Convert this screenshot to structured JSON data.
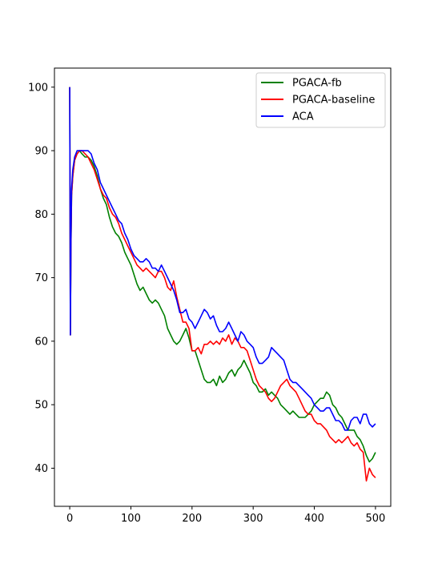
{
  "chart_data": {
    "type": "line",
    "title": "",
    "xlabel": "",
    "ylabel": "",
    "xlim": [
      -25,
      525
    ],
    "ylim": [
      34,
      103
    ],
    "xticks": [
      0,
      100,
      200,
      300,
      400,
      500
    ],
    "yticks": [
      40,
      50,
      60,
      70,
      80,
      90,
      100
    ],
    "legend_position": "top-right",
    "grid": false,
    "series": [
      {
        "name": "PGACA-fb",
        "color": "#008000",
        "x": [
          0,
          1,
          2,
          3,
          5,
          8,
          12,
          16,
          20,
          25,
          30,
          35,
          40,
          45,
          50,
          55,
          60,
          65,
          70,
          75,
          80,
          85,
          90,
          95,
          100,
          105,
          110,
          115,
          120,
          125,
          130,
          135,
          140,
          145,
          150,
          155,
          160,
          165,
          170,
          175,
          180,
          185,
          190,
          195,
          200,
          205,
          210,
          215,
          220,
          225,
          230,
          235,
          240,
          245,
          250,
          255,
          260,
          265,
          270,
          275,
          280,
          285,
          290,
          295,
          300,
          305,
          310,
          315,
          320,
          325,
          330,
          335,
          340,
          345,
          350,
          355,
          360,
          365,
          370,
          375,
          380,
          385,
          390,
          395,
          400,
          405,
          410,
          415,
          420,
          425,
          430,
          435,
          440,
          445,
          450,
          455,
          460,
          465,
          470,
          475,
          480,
          485,
          490,
          495,
          500
        ],
        "values": [
          100,
          61,
          75,
          83,
          86,
          88.5,
          89.5,
          90,
          89.5,
          89,
          89,
          88.5,
          87.5,
          86,
          84,
          82.5,
          81.5,
          79.5,
          78,
          77,
          76.5,
          75.5,
          74,
          73,
          72,
          70.5,
          69,
          68,
          68.5,
          67.5,
          66.5,
          66,
          66.5,
          66,
          65,
          64,
          62,
          61,
          60,
          59.5,
          60,
          61,
          62,
          60.5,
          58.5,
          58.5,
          57,
          55.5,
          54,
          53.5,
          53.5,
          54,
          53,
          54.5,
          53.5,
          54,
          55,
          55.5,
          54.5,
          55.5,
          56,
          57,
          56,
          55,
          53.5,
          53,
          52,
          52,
          52.5,
          51.5,
          52,
          51.5,
          51,
          50,
          49.5,
          49,
          48.5,
          49,
          48.5,
          48,
          48,
          48,
          48.5,
          49,
          50,
          50.5,
          51,
          51,
          52,
          51.5,
          50,
          49.5,
          48.5,
          48,
          47,
          46,
          46,
          46,
          45,
          44.5,
          43.5,
          42,
          41,
          41.5,
          42.5
        ]
      },
      {
        "name": "PGACA-baseline",
        "color": "#ff0000",
        "x": [
          0,
          1,
          2,
          3,
          5,
          8,
          12,
          16,
          20,
          25,
          30,
          35,
          40,
          45,
          50,
          55,
          60,
          65,
          70,
          75,
          80,
          85,
          90,
          95,
          100,
          105,
          110,
          115,
          120,
          125,
          130,
          135,
          140,
          145,
          150,
          155,
          160,
          165,
          170,
          175,
          180,
          185,
          190,
          195,
          200,
          205,
          210,
          215,
          220,
          225,
          230,
          235,
          240,
          245,
          250,
          255,
          260,
          265,
          270,
          275,
          280,
          285,
          290,
          295,
          300,
          305,
          310,
          315,
          320,
          325,
          330,
          335,
          340,
          345,
          350,
          355,
          360,
          365,
          370,
          375,
          380,
          385,
          390,
          395,
          400,
          405,
          410,
          415,
          420,
          425,
          430,
          435,
          440,
          445,
          450,
          455,
          460,
          465,
          470,
          475,
          480,
          485,
          490,
          495,
          500
        ],
        "values": [
          100,
          61,
          75,
          83,
          86,
          88.5,
          89.5,
          90,
          90,
          89.5,
          89,
          88,
          87,
          85.5,
          84,
          83,
          82.5,
          81,
          80,
          79.5,
          78.5,
          77,
          76,
          75,
          74,
          73,
          72,
          71.5,
          71,
          71.5,
          71,
          70.5,
          70,
          71,
          71,
          70,
          68.5,
          68,
          69.5,
          67,
          65,
          63,
          63,
          62,
          58.5,
          58.5,
          59,
          58,
          59.5,
          59.5,
          60,
          59.5,
          60,
          59.5,
          60.5,
          60,
          61,
          59.5,
          60.5,
          60,
          59,
          59,
          58.5,
          57,
          55.5,
          54,
          53,
          52.5,
          52,
          51,
          50.5,
          51,
          52,
          53,
          53.5,
          54,
          53,
          52.5,
          52,
          51,
          50,
          49,
          48.5,
          48.5,
          47.5,
          47,
          47,
          46.5,
          46,
          45,
          44.5,
          44,
          44.5,
          44,
          44.5,
          45,
          44,
          43.5,
          44,
          43,
          42.5,
          38,
          40,
          39,
          38.5
        ]
      },
      {
        "name": "ACA",
        "color": "#0000ff",
        "x": [
          0,
          1,
          2,
          3,
          5,
          8,
          12,
          16,
          20,
          25,
          30,
          35,
          40,
          45,
          50,
          55,
          60,
          65,
          70,
          75,
          80,
          85,
          90,
          95,
          100,
          105,
          110,
          115,
          120,
          125,
          130,
          135,
          140,
          145,
          150,
          155,
          160,
          165,
          170,
          175,
          180,
          185,
          190,
          195,
          200,
          205,
          210,
          215,
          220,
          225,
          230,
          235,
          240,
          245,
          250,
          255,
          260,
          265,
          270,
          275,
          280,
          285,
          290,
          295,
          300,
          305,
          310,
          315,
          320,
          325,
          330,
          335,
          340,
          345,
          350,
          355,
          360,
          365,
          370,
          375,
          380,
          385,
          390,
          395,
          400,
          405,
          410,
          415,
          420,
          425,
          430,
          435,
          440,
          445,
          450,
          455,
          460,
          465,
          470,
          475,
          480,
          485,
          490,
          495,
          500
        ],
        "values": [
          100,
          61,
          76,
          84,
          87,
          89,
          90,
          90,
          90,
          90,
          90,
          89.5,
          88,
          87,
          85,
          84,
          83,
          82,
          81,
          80,
          79,
          78.5,
          77,
          76,
          74.5,
          73.5,
          73,
          72.5,
          72.5,
          73,
          72.5,
          71.5,
          71.5,
          71,
          72,
          71,
          70,
          69,
          68,
          66.5,
          64.5,
          64.5,
          65,
          63.5,
          63,
          62,
          63,
          64,
          65,
          64.5,
          63.5,
          64,
          62.5,
          61.5,
          61.5,
          62,
          63,
          62,
          61,
          60,
          61.5,
          61,
          60,
          59.5,
          59,
          57.5,
          56.5,
          56.5,
          57,
          57.5,
          59,
          58.5,
          58,
          57.5,
          57,
          55.5,
          54,
          53.5,
          53.5,
          53,
          52.5,
          52,
          51.5,
          51,
          50,
          49.5,
          49,
          49,
          49.5,
          49.5,
          48.5,
          47.5,
          47.5,
          47,
          46,
          46,
          47.5,
          48,
          48,
          47,
          48.5,
          48.5,
          47,
          46.5,
          47
        ]
      }
    ]
  }
}
